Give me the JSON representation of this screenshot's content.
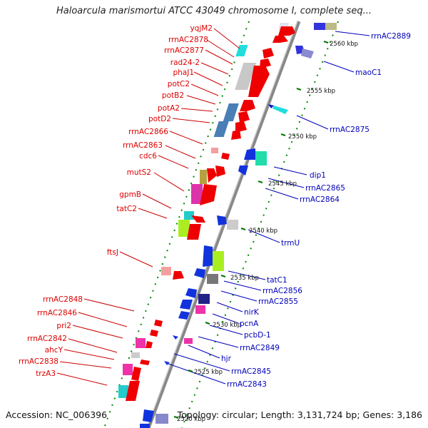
{
  "title": "Haloarcula marismortui ATCC 43049 chromosome I, complete seq...",
  "accession": "Accession: NC_006396",
  "summary": "Topology: circular; Length: 3,131,724 bp; Genes: 3,186",
  "colors": {
    "left_gene_label": "#dd0000",
    "right_gene_label": "#0000bb",
    "backbone": "#888888",
    "tick": "#007700"
  },
  "ticks": [
    "2560 kbp",
    "2555 kbp",
    "2550 kbp",
    "2545 kbp",
    "2540 kbp",
    "2535 kbp",
    "2530 kbp",
    "2525 kbp",
    "2520 kbp"
  ],
  "left_labels": [
    "yqjM2",
    "rrnAC2878",
    "rrnAC2877",
    "rad24-2",
    "phaJ1",
    "potC2",
    "potB2",
    "potA2",
    "potD2",
    "rrnAC2866",
    "rrnAC2863",
    "cdc6",
    "mutS2",
    "gpmB",
    "tatC2",
    "ftsJ",
    "rrnAC2848",
    "rrnAC2846",
    "pri2",
    "rrnAC2842",
    "ahcY",
    "rrnAC2838",
    "trzA3"
  ],
  "right_labels": [
    "rrnAC2889",
    "maoC1",
    "rrnAC2875",
    "dip1",
    "rrnAC2865",
    "rrnAC2864",
    "trmU",
    "tatC1",
    "rrnAC2856",
    "rrnAC2855",
    "nirK",
    "pcnA",
    "pcbD-1",
    "rrnAC2849",
    "hjr",
    "rrnAC2845",
    "rrnAC2843"
  ]
}
